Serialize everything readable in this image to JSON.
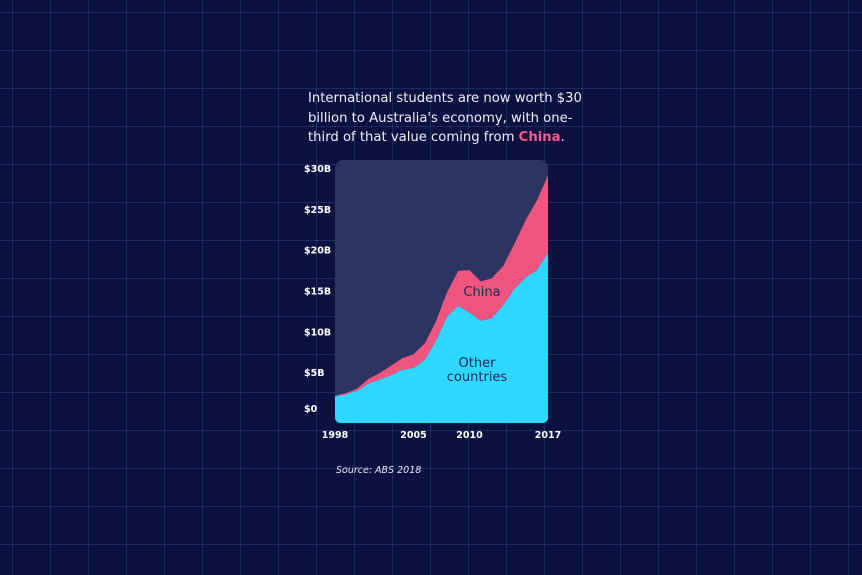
{
  "headline": {
    "text_before": "International students are now worth $30 billion to Australia's economy, with one-third of that value coming from ",
    "highlight": "China",
    "text_after": "."
  },
  "source": "Source: ABS 2018",
  "colors": {
    "background": "#0c1140",
    "china": "#f0557f",
    "other": "#2fd6ff",
    "plot_panel": "#2d3462"
  },
  "chart_data": {
    "type": "area",
    "stacked": true,
    "x": [
      1998,
      1999,
      2000,
      2001,
      2002,
      2003,
      2004,
      2005,
      2006,
      2007,
      2008,
      2009,
      2010,
      2011,
      2012,
      2013,
      2014,
      2015,
      2016,
      2017
    ],
    "series": [
      {
        "name": "Other countries",
        "values": [
          2.0,
          2.3,
          2.7,
          3.6,
          4.1,
          4.6,
          5.3,
          5.5,
          6.5,
          8.8,
          11.8,
          13.1,
          12.3,
          11.3,
          11.6,
          13.2,
          15.2,
          16.6,
          17.5,
          19.6
        ]
      },
      {
        "name": "China",
        "values": [
          0.1,
          0.15,
          0.3,
          0.6,
          0.8,
          1.2,
          1.4,
          1.7,
          2.0,
          2.4,
          3.0,
          4.3,
          5.2,
          4.8,
          4.9,
          4.8,
          5.5,
          7.0,
          8.5,
          9.5
        ]
      }
    ],
    "area_labels": [
      "China",
      "Other countries"
    ],
    "ylim": [
      0,
      30
    ],
    "xlim": [
      1998,
      2017
    ],
    "y_ticks": [
      {
        "value": 0,
        "label": "$0"
      },
      {
        "value": 5,
        "label": "$5B"
      },
      {
        "value": 10,
        "label": "$10B"
      },
      {
        "value": 15,
        "label": "$15B"
      },
      {
        "value": 20,
        "label": "$20B"
      },
      {
        "value": 25,
        "label": "$25B"
      },
      {
        "value": 30,
        "label": "$30B"
      }
    ],
    "x_ticks": [
      {
        "value": 1998,
        "label": "1998"
      },
      {
        "value": 2005,
        "label": "2005"
      },
      {
        "value": 2010,
        "label": "2010"
      },
      {
        "value": 2017,
        "label": "2017"
      }
    ],
    "grid": false,
    "legend": "none"
  }
}
